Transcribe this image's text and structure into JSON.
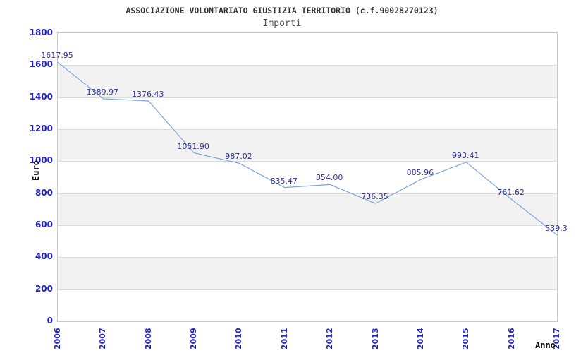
{
  "header": {
    "title": "ASSOCIAZIONE VOLONTARIATO GIUSTIZIA TERRITORIO (c.f.90028270123)",
    "subtitle": "Importi"
  },
  "chart_data": {
    "type": "line",
    "title": "Importi",
    "x": [
      "2006",
      "2007",
      "2008",
      "2009",
      "2010",
      "2011",
      "2012",
      "2013",
      "2014",
      "2015",
      "2016",
      "2017"
    ],
    "values": [
      1617.95,
      1389.97,
      1376.43,
      1051.9,
      987.02,
      835.47,
      854.0,
      736.35,
      885.96,
      993.41,
      761.62,
      539.3
    ],
    "point_labels": [
      "1617.95",
      "1389.97",
      "1376.43",
      "1051.90",
      "987.02",
      "835.47",
      "854.00",
      "736.35",
      "885.96",
      "993.41",
      "761.62",
      "539.3"
    ],
    "xlabel": "Anno",
    "ylabel": "Euro",
    "ylim": [
      0,
      1800
    ],
    "ytick_step": 200,
    "grid": true,
    "legend": false,
    "band_pattern": "alternating horizontal bands starting white at top",
    "colors": {
      "line": "#7aa7dd",
      "tick_label": "#2222cc",
      "point_label": "#333399",
      "band_alt": "#f2f2f2",
      "gridline": "#dcdcdc",
      "plot_border": "#c8c8c8",
      "title": "#333333",
      "subtitle": "#555555",
      "axis_title": "#111111"
    }
  }
}
